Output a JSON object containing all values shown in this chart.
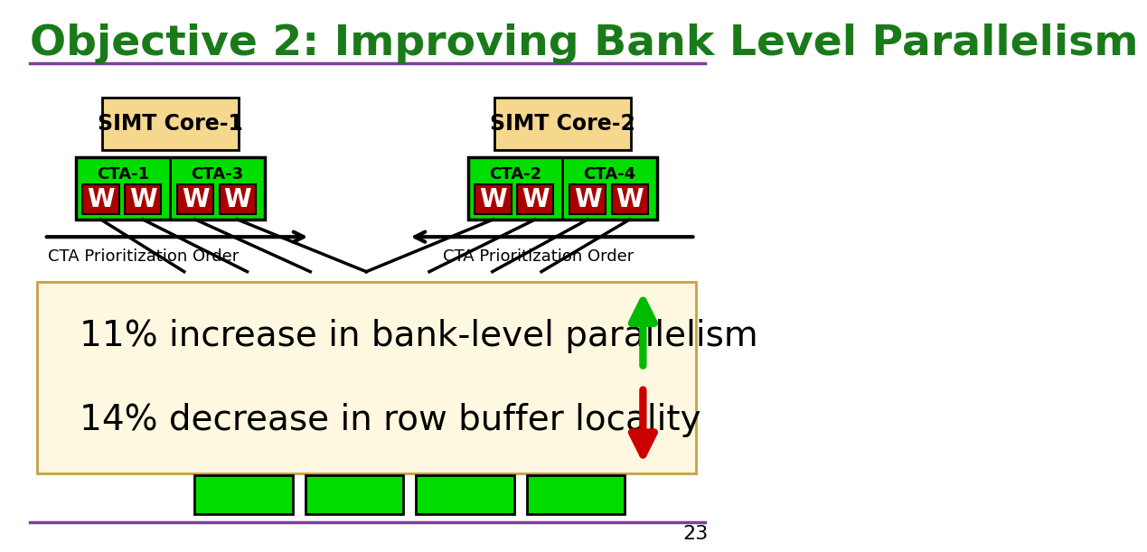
{
  "title": "Objective 2: Improving Bank Level Parallelism",
  "title_color": "#1a7a1a",
  "title_fontsize": 34,
  "bg_color": "#ffffff",
  "slide_number": "23",
  "separator_color": "#7b3fa0",
  "core1_label": "SIMT Core-1",
  "core2_label": "SIMT Core-2",
  "cta1_label": "CTA-1",
  "cta3_label": "CTA-3",
  "cta2_label": "CTA-2",
  "cta4_label": "CTA-4",
  "warp_label": "W",
  "cta_order_label": "CTA Prioritization Order",
  "result_line1": "11% increase in bank-level parallelism",
  "result_line2": "14% decrease in row buffer locality",
  "core_box_color": "#f5d78e",
  "cta_box_color": "#00dd00",
  "warp_box_color": "#aa0000",
  "warp_text_color": "#ffffff",
  "result_box_color": "#fff8e0",
  "result_box_edge": "#c8a040",
  "dram_box_color": "#00dd00",
  "arrow_up_color": "#00bb00",
  "arrow_down_color": "#cc0000",
  "text_fontsize": 28
}
